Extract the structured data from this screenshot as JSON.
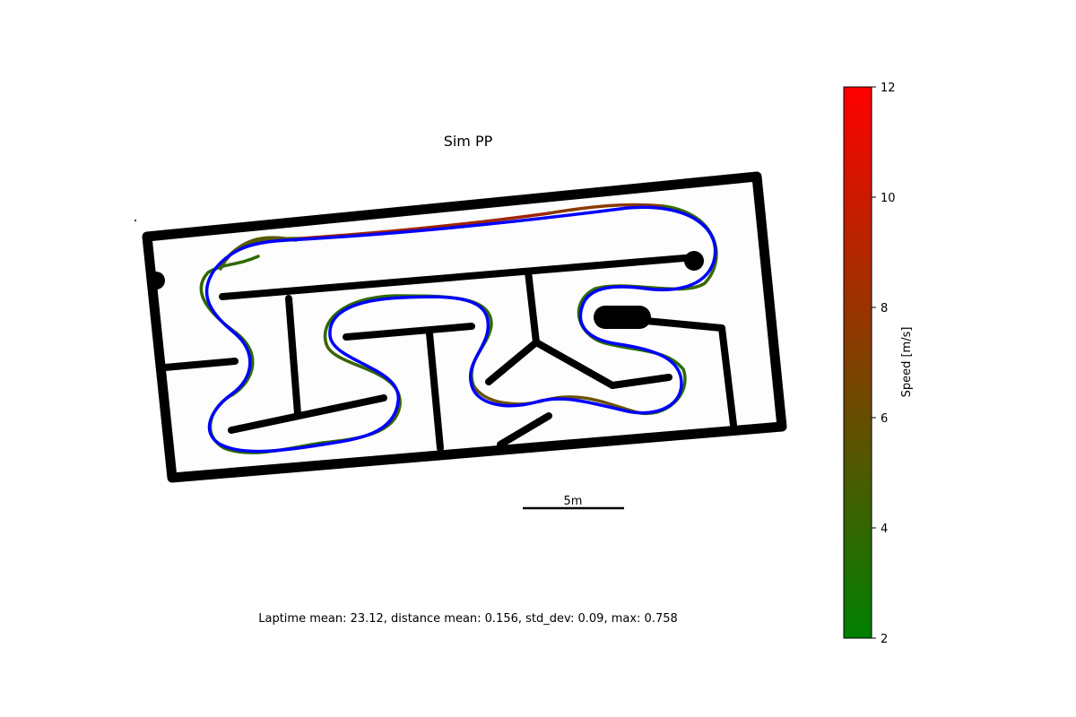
{
  "chart_data": {
    "type": "line",
    "title": "Sim PP",
    "footer": "Laptime mean: 23.12, distance mean: 0.156, std_dev: 0.09, max: 0.758",
    "scale_bar_label": "5m",
    "colorbar": {
      "label": "Speed [m/s]",
      "range": [
        2,
        12
      ],
      "ticks": [
        "2",
        "4",
        "6",
        "8",
        "10",
        "12"
      ],
      "low_color": "#008000",
      "high_color": "#ff0000"
    },
    "series": [
      {
        "role": "reference raceline",
        "color": "#0000ff"
      },
      {
        "role": "driven trajectory, colored by speed",
        "color_scale": "speed"
      }
    ]
  }
}
